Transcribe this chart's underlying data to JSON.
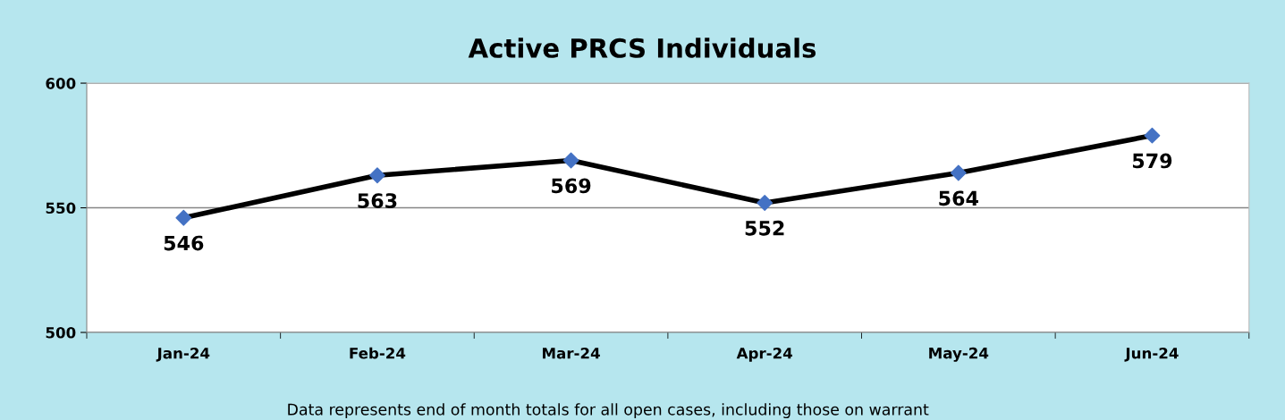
{
  "chart_data": {
    "type": "line",
    "title": "Active PRCS Individuals",
    "categories": [
      "Jan-24",
      "Feb-24",
      "Mar-24",
      "Apr-24",
      "May-24",
      "Jun-24"
    ],
    "series": [
      {
        "color": "#000000",
        "colors": [
          "#4472c4",
          "#4472c4",
          "#4472c4",
          "#4472c4",
          "#4472c4",
          "#4472c4"
        ],
        "values": [
          546,
          563,
          569,
          552,
          564,
          579
        ]
      }
    ],
    "ylim": [
      500,
      600
    ],
    "yticks": [
      500,
      550,
      600
    ],
    "grid": "y",
    "marker": "diamond",
    "line_style": "solid",
    "data_labels": true,
    "annotations": [
      "Data represents end of month totals for all open cases, including those on warrant"
    ]
  }
}
